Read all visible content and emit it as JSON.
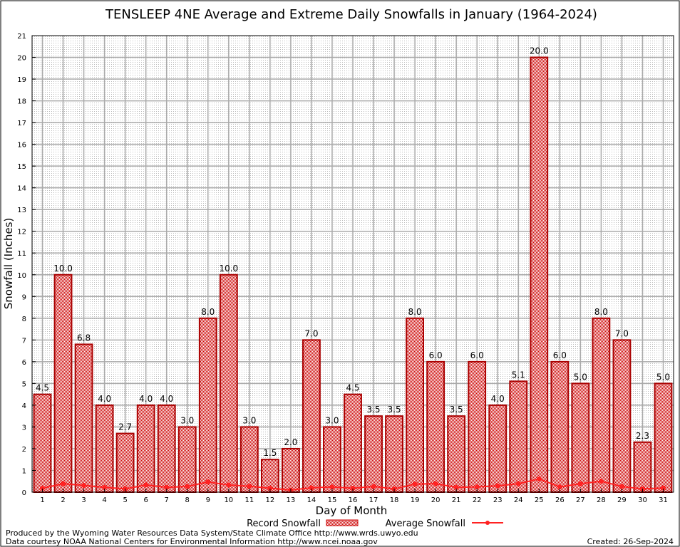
{
  "chart_data": {
    "type": "bar",
    "title": "TENSLEEP 4NE Average and Extreme Daily Snowfalls in January (1964-2024)",
    "xlabel": "Day of Month",
    "ylabel": "Snowfall (Inches)",
    "ylim": [
      0,
      21
    ],
    "yticks": [
      0,
      1,
      2,
      3,
      4,
      5,
      6,
      7,
      8,
      9,
      10,
      11,
      12,
      13,
      14,
      15,
      16,
      17,
      18,
      19,
      20,
      21
    ],
    "grid": true,
    "legend_placement": "bottom",
    "categories": [
      "1",
      "2",
      "3",
      "4",
      "5",
      "6",
      "7",
      "8",
      "9",
      "10",
      "11",
      "12",
      "13",
      "14",
      "15",
      "16",
      "17",
      "18",
      "19",
      "20",
      "21",
      "22",
      "23",
      "24",
      "25",
      "26",
      "27",
      "28",
      "29",
      "30",
      "31"
    ],
    "series": [
      {
        "name": "Record Snowfall",
        "type": "bar",
        "color": "#cc0000",
        "values": [
          4.5,
          10.0,
          6.8,
          4.0,
          2.7,
          4.0,
          4.0,
          3.0,
          8.0,
          10.0,
          3.0,
          1.5,
          2.0,
          7.0,
          3.0,
          4.5,
          3.5,
          3.5,
          8.0,
          6.0,
          3.5,
          6.0,
          4.0,
          5.1,
          20.0,
          6.0,
          5.0,
          8.0,
          7.0,
          2.3,
          5.0
        ],
        "labels": [
          "4.5",
          "10.0",
          "6.8",
          "4.0",
          "2.7",
          "4.0",
          "4.0",
          "3.0",
          "8.0",
          "10.0",
          "3.0",
          "1.5",
          "2.0",
          "7.0",
          "3.0",
          "4.5",
          "3.5",
          "3.5",
          "8.0",
          "6.0",
          "3.5",
          "6.0",
          "4.0",
          "5.1",
          "20.0",
          "6.0",
          "5.0",
          "8.0",
          "7.0",
          "2.3",
          "5.0"
        ]
      },
      {
        "name": "Average Snowfall",
        "type": "line",
        "color": "#ff2222",
        "values": [
          0.18,
          0.39,
          0.31,
          0.22,
          0.15,
          0.33,
          0.22,
          0.26,
          0.47,
          0.33,
          0.27,
          0.18,
          0.1,
          0.2,
          0.24,
          0.18,
          0.26,
          0.15,
          0.37,
          0.39,
          0.22,
          0.24,
          0.29,
          0.39,
          0.61,
          0.24,
          0.39,
          0.5,
          0.26,
          0.15,
          0.19
        ]
      }
    ]
  },
  "footer": {
    "credit1": "Produced by the Wyoming Water Resources Data System/State Climate Office http://www.wrds.uwyo.edu",
    "credit2": "Data courtesy NOAA National Centers for Environmental Information http://www.ncei.noaa.gov",
    "created": "Created:  26-Sep-2024"
  }
}
